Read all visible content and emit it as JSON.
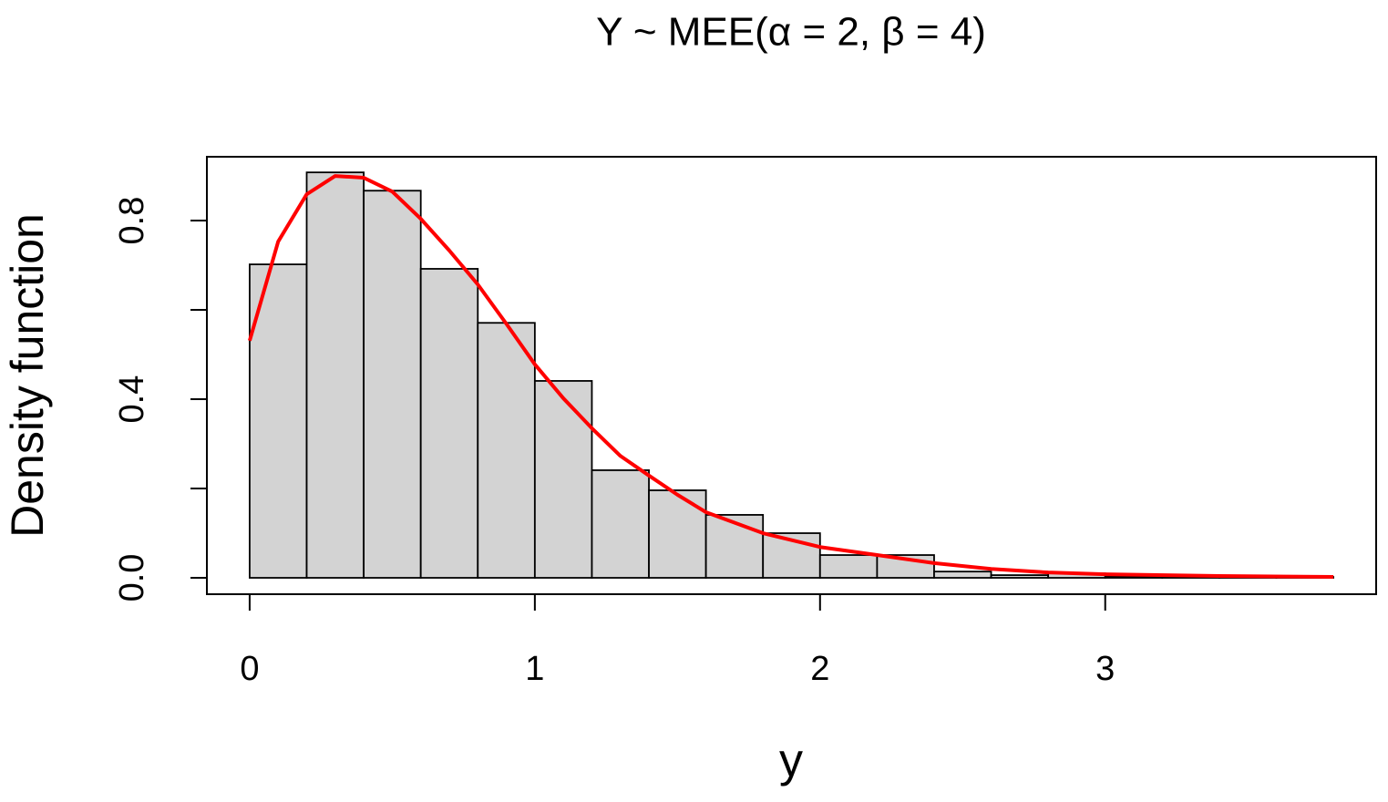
{
  "chart_data": {
    "type": "histogram",
    "title": "Y ~ MEE(α = 2, β = 4)",
    "x_label": "y",
    "y_label": "Density function",
    "bins": [
      0,
      0.2,
      0.4,
      0.6,
      0.8,
      1.0,
      1.2,
      1.4,
      1.6,
      1.8,
      2.0,
      2.2,
      2.4,
      2.6,
      2.8,
      3.0,
      3.2,
      3.4,
      3.6,
      3.8
    ],
    "values": [
      0.702,
      0.908,
      0.867,
      0.692,
      0.571,
      0.441,
      0.241,
      0.196,
      0.141,
      0.1,
      0.051,
      0.051,
      0.014,
      0.006,
      0.01,
      0.003,
      0.003,
      0.001,
      0.002
    ],
    "color": "#d3d3d3",
    "curve": {
      "color": "#ff0000",
      "x": [
        0,
        0.1,
        0.2,
        0.3,
        0.4,
        0.5,
        0.6,
        0.7,
        0.8,
        0.9,
        1.0,
        1.1,
        1.2,
        1.3,
        1.4,
        1.5,
        1.6,
        1.8,
        2.0,
        2.2,
        2.4,
        2.6,
        2.8,
        3.0,
        3.4,
        3.8
      ],
      "values": [
        0.531,
        0.753,
        0.859,
        0.9,
        0.896,
        0.865,
        0.804,
        0.733,
        0.657,
        0.569,
        0.478,
        0.402,
        0.335,
        0.273,
        0.229,
        0.186,
        0.147,
        0.1,
        0.069,
        0.051,
        0.033,
        0.02,
        0.012,
        0.008,
        0.004,
        0.002
      ]
    },
    "xlim": [
      -0.15,
      3.95
    ],
    "ylim": [
      -0.0367,
      0.943
    ],
    "xticks": [
      0,
      1,
      2,
      3
    ],
    "yticks": [
      {
        "value": 0,
        "label": "0.0"
      },
      0.4,
      0.8
    ],
    "y_minor_ticks": [
      0.2,
      0.6
    ]
  }
}
